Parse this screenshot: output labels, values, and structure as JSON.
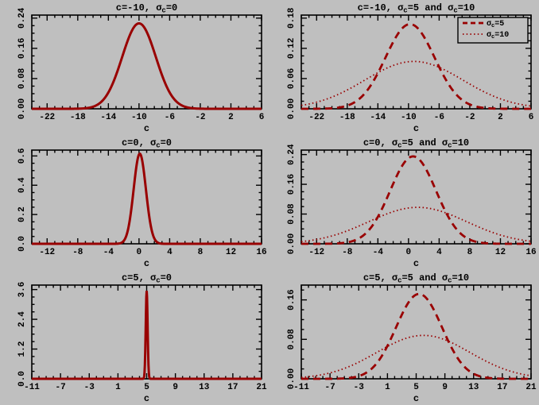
{
  "figure": {
    "background": "#bfbfbf",
    "frame_color": "#000000",
    "text_color": "#000000",
    "curve_color": "#990000"
  },
  "chart_data": [
    {
      "id": "top-left",
      "type": "line",
      "title": "c=-10, σc=0",
      "xlabel": "c",
      "xlim": [
        -24,
        6
      ],
      "ylim": [
        0,
        0.248
      ],
      "xticks": [
        -22,
        -18,
        -14,
        -10,
        -6,
        -2,
        2,
        6
      ],
      "xtick_labels": [
        "-22",
        "-18",
        "-14",
        "-10",
        "-6",
        "-2",
        "2",
        "6"
      ],
      "yticks": [
        0,
        0.08,
        0.16,
        0.24
      ],
      "ytick_labels": [
        "0.00",
        "0.08",
        "0.16",
        "0.24"
      ],
      "x_minor_step": 1,
      "y_minor_step": 0.02,
      "series": [
        {
          "name": "σc=0",
          "style": "solid",
          "gaussian": {
            "mean": -10,
            "sigma": 2.2,
            "peak": 0.226
          }
        }
      ]
    },
    {
      "id": "top-right",
      "type": "line",
      "title": "c=-10, σc=5 and σc=10",
      "xlabel": "c",
      "xlim": [
        -24,
        6
      ],
      "ylim": [
        0,
        0.186
      ],
      "xticks": [
        -22,
        -18,
        -14,
        -10,
        -6,
        -2,
        2,
        6
      ],
      "xtick_labels": [
        "-22",
        "-18",
        "-14",
        "-10",
        "-6",
        "-2",
        "2",
        "6"
      ],
      "yticks": [
        0,
        0.06,
        0.12,
        0.18
      ],
      "ytick_labels": [
        "0.00",
        "0.06",
        "0.12",
        "0.18"
      ],
      "x_minor_step": 1,
      "y_minor_step": 0.015,
      "series": [
        {
          "name": "σc=5",
          "style": "dashed",
          "gaussian": {
            "mean": -9.8,
            "sigma": 3.2,
            "peak": 0.168
          }
        },
        {
          "name": "σc=10",
          "style": "dotted",
          "gaussian": {
            "mean": -9.3,
            "sigma": 6.4,
            "peak": 0.094
          }
        }
      ],
      "legend": {
        "position": "top-right",
        "entries": [
          {
            "label": "σc=5",
            "style": "dashed"
          },
          {
            "label": "σc=10",
            "style": "dotted"
          }
        ]
      }
    },
    {
      "id": "middle-left",
      "type": "line",
      "title": "c=0, σc=0",
      "xlabel": "c",
      "xlim": [
        -14,
        16
      ],
      "ylim": [
        0,
        0.64
      ],
      "xticks": [
        -12,
        -8,
        -4,
        0,
        4,
        8,
        12,
        16
      ],
      "xtick_labels": [
        "-12",
        "-8",
        "-4",
        "0",
        "4",
        "8",
        "12",
        "16"
      ],
      "yticks": [
        0,
        0.2,
        0.4,
        0.6
      ],
      "ytick_labels": [
        "0.0",
        "0.2",
        "0.4",
        "0.6"
      ],
      "x_minor_step": 1,
      "y_minor_step": 0.05,
      "series": [
        {
          "name": "σc=0",
          "style": "solid",
          "gaussian": {
            "mean": 0.1,
            "sigma": 0.8,
            "peak": 0.615
          }
        }
      ]
    },
    {
      "id": "middle-right",
      "type": "line",
      "title": "c=0, σc=5 and σc=10",
      "xlabel": "c",
      "xlim": [
        -14,
        16
      ],
      "ylim": [
        0,
        0.252
      ],
      "xticks": [
        -12,
        -8,
        -4,
        0,
        4,
        8,
        12,
        16
      ],
      "xtick_labels": [
        "-12",
        "-8",
        "-4",
        "0",
        "4",
        "8",
        "12",
        "16"
      ],
      "yticks": [
        0,
        0.08,
        0.16,
        0.24
      ],
      "ytick_labels": [
        "0.00",
        "0.08",
        "0.16",
        "0.24"
      ],
      "x_minor_step": 1,
      "y_minor_step": 0.02,
      "series": [
        {
          "name": "σc=5",
          "style": "dashed",
          "gaussian": {
            "mean": 0.6,
            "sigma": 3.0,
            "peak": 0.235
          }
        },
        {
          "name": "σc=10",
          "style": "dotted",
          "gaussian": {
            "mean": 1.2,
            "sigma": 6.4,
            "peak": 0.098
          }
        }
      ]
    },
    {
      "id": "bottom-left",
      "type": "line",
      "title": "c=5, σc=0",
      "xlabel": "c",
      "xlim": [
        -11,
        21
      ],
      "ylim": [
        0,
        3.78
      ],
      "xticks": [
        -11,
        -7,
        -3,
        1,
        5,
        9,
        13,
        17,
        21
      ],
      "xtick_labels": [
        "-11",
        "-7",
        "-3",
        "1",
        "5",
        "9",
        "13",
        "17",
        "21"
      ],
      "yticks": [
        0,
        1.2,
        2.4,
        3.6
      ],
      "ytick_labels": [
        "0.0",
        "1.2",
        "2.4",
        "3.6"
      ],
      "x_minor_step": 1,
      "y_minor_step": 0.3,
      "series": [
        {
          "name": "σc=0",
          "style": "solid",
          "gaussian": {
            "mean": 5,
            "sigma": 0.13,
            "peak": 3.55
          }
        }
      ]
    },
    {
      "id": "bottom-right",
      "type": "line",
      "title": "c=5, σc=5 and σc=10",
      "xlabel": "c",
      "xlim": [
        -11,
        21
      ],
      "ylim": [
        0,
        0.19
      ],
      "xticks": [
        -11,
        -7,
        -3,
        1,
        5,
        9,
        13,
        17,
        21
      ],
      "xtick_labels": [
        "-11",
        "-7",
        "-3",
        "1",
        "5",
        "9",
        "13",
        "17",
        "21"
      ],
      "yticks": [
        0,
        0.08,
        0.16
      ],
      "ytick_labels": [
        "0.00",
        "0.08",
        "0.16"
      ],
      "x_minor_step": 1,
      "y_minor_step": 0.02,
      "series": [
        {
          "name": "σc=5",
          "style": "dashed",
          "gaussian": {
            "mean": 5.4,
            "sigma": 3.2,
            "peak": 0.172
          }
        },
        {
          "name": "σc=10",
          "style": "dotted",
          "gaussian": {
            "mean": 6.0,
            "sigma": 6.5,
            "peak": 0.088
          }
        }
      ]
    }
  ]
}
